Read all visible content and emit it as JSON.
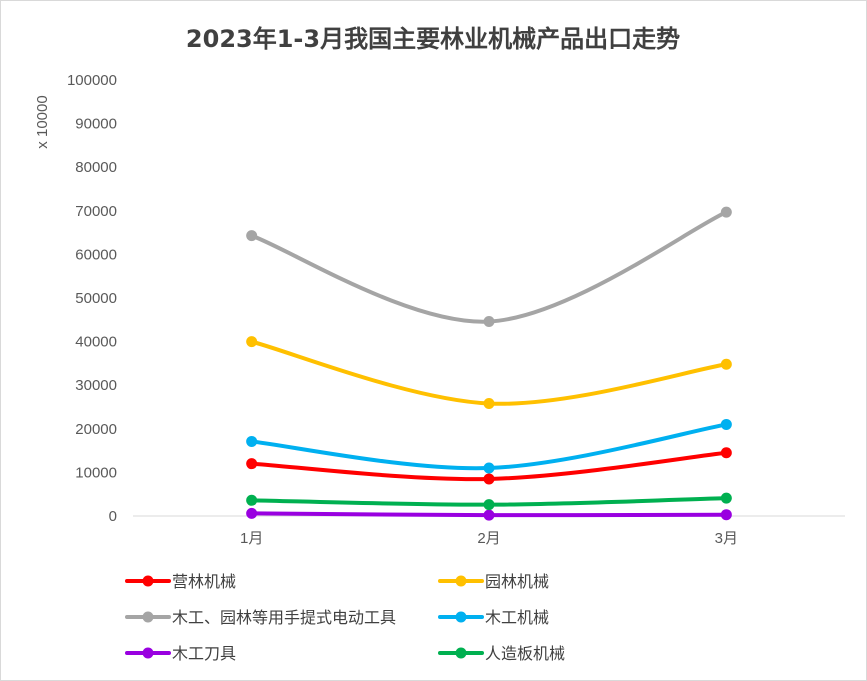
{
  "chart_data": {
    "type": "line",
    "title": "2023年1-3月我国主要林业机械产品出口走势",
    "ylabel": "x 10000",
    "xlabel": "",
    "categories": [
      "1月",
      "2月",
      "3月"
    ],
    "ylim": [
      0,
      100000
    ],
    "yticks": [
      0,
      10000,
      20000,
      30000,
      40000,
      50000,
      60000,
      70000,
      80000,
      90000,
      100000
    ],
    "grid": false,
    "smooth": true,
    "legend_position": "bottom",
    "series": [
      {
        "name": "营林机械",
        "color": "#ff0000",
        "values": [
          12000,
          8500,
          14500
        ]
      },
      {
        "name": "园林机械",
        "color": "#ffc000",
        "values": [
          40000,
          25800,
          34800
        ]
      },
      {
        "name": "木工、园林等用手提式电动工具",
        "color": "#a5a5a5",
        "values": [
          64300,
          44600,
          69700
        ]
      },
      {
        "name": "木工机械",
        "color": "#00b0f0",
        "values": [
          17100,
          11000,
          21000
        ]
      },
      {
        "name": "木工刀具",
        "color": "#9900e0",
        "values": [
          600,
          200,
          300
        ]
      },
      {
        "name": "人造板机械",
        "color": "#00b050",
        "values": [
          3600,
          2600,
          4100
        ]
      }
    ]
  }
}
